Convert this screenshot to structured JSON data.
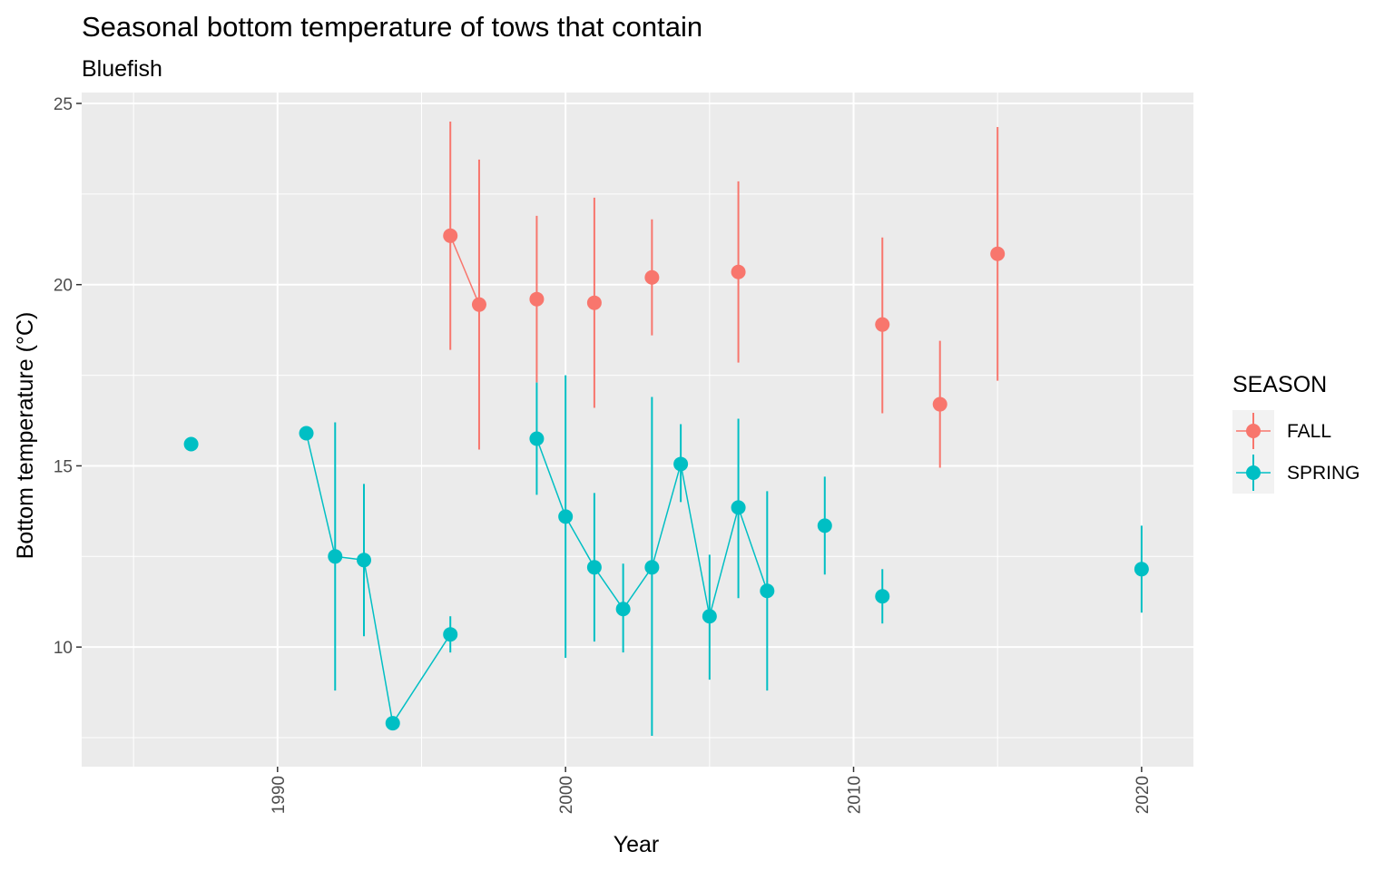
{
  "chart_data": {
    "type": "scatter",
    "title": "Seasonal bottom temperature of tows that contain",
    "subtitle": "Bluefish",
    "xlabel": "Year",
    "ylabel": "Bottom temperature (°C)",
    "xlim": [
      1983.2,
      2021.8
    ],
    "ylim": [
      6.7,
      25.3
    ],
    "x_ticks": [
      1990,
      2000,
      2010,
      2020
    ],
    "y_ticks": [
      10,
      15,
      20,
      25
    ],
    "grid": true,
    "legend": {
      "title": "SEASON",
      "placement": "right"
    },
    "series": [
      {
        "name": "FALL",
        "color": "#F8766D",
        "points": [
          {
            "x": 1996,
            "y": 21.35,
            "ymin": 18.2,
            "ymax": 24.5
          },
          {
            "x": 1997,
            "y": 19.45,
            "ymin": 15.45,
            "ymax": 23.45
          },
          {
            "x": 1999,
            "y": 19.6,
            "ymin": 17.3,
            "ymax": 21.9
          },
          {
            "x": 2001,
            "y": 19.5,
            "ymin": 16.6,
            "ymax": 22.4
          },
          {
            "x": 2003,
            "y": 20.2,
            "ymin": 18.6,
            "ymax": 21.8
          },
          {
            "x": 2006,
            "y": 20.35,
            "ymin": 17.85,
            "ymax": 22.85
          },
          {
            "x": 2011,
            "y": 18.9,
            "ymin": 16.45,
            "ymax": 21.3
          },
          {
            "x": 2013,
            "y": 16.7,
            "ymin": 14.95,
            "ymax": 18.45
          },
          {
            "x": 2015,
            "y": 20.85,
            "ymin": 17.35,
            "ymax": 24.35
          }
        ],
        "line_segments": [
          [
            1996,
            1997
          ]
        ]
      },
      {
        "name": "SPRING",
        "color": "#00BFC4",
        "points": [
          {
            "x": 1987,
            "y": 15.6,
            "ymin": 15.6,
            "ymax": 15.6
          },
          {
            "x": 1991,
            "y": 15.9,
            "ymin": 15.9,
            "ymax": 15.9
          },
          {
            "x": 1992,
            "y": 12.5,
            "ymin": 8.8,
            "ymax": 16.2
          },
          {
            "x": 1993,
            "y": 12.4,
            "ymin": 10.3,
            "ymax": 14.5
          },
          {
            "x": 1994,
            "y": 7.9,
            "ymin": 7.9,
            "ymax": 7.9
          },
          {
            "x": 1996,
            "y": 10.35,
            "ymin": 9.85,
            "ymax": 10.85
          },
          {
            "x": 1999,
            "y": 15.75,
            "ymin": 14.2,
            "ymax": 17.3
          },
          {
            "x": 2000,
            "y": 13.6,
            "ymin": 9.7,
            "ymax": 17.5
          },
          {
            "x": 2001,
            "y": 12.2,
            "ymin": 10.15,
            "ymax": 14.25
          },
          {
            "x": 2002,
            "y": 11.05,
            "ymin": 9.85,
            "ymax": 12.3
          },
          {
            "x": 2003,
            "y": 12.2,
            "ymin": 7.55,
            "ymax": 16.9
          },
          {
            "x": 2004,
            "y": 15.05,
            "ymin": 14.0,
            "ymax": 16.15
          },
          {
            "x": 2005,
            "y": 10.85,
            "ymin": 9.1,
            "ymax": 12.55
          },
          {
            "x": 2006,
            "y": 13.85,
            "ymin": 11.35,
            "ymax": 16.3
          },
          {
            "x": 2007,
            "y": 11.55,
            "ymin": 8.8,
            "ymax": 14.3
          },
          {
            "x": 2009,
            "y": 13.35,
            "ymin": 12.0,
            "ymax": 14.7
          },
          {
            "x": 2011,
            "y": 11.4,
            "ymin": 10.65,
            "ymax": 12.15
          },
          {
            "x": 2020,
            "y": 12.15,
            "ymin": 10.95,
            "ymax": 13.35
          }
        ],
        "line_segments": [
          [
            1991,
            1992,
            1993,
            1994,
            1996
          ],
          [
            1999,
            2000,
            2001,
            2002,
            2003,
            2004,
            2005,
            2006,
            2007
          ]
        ]
      }
    ]
  }
}
